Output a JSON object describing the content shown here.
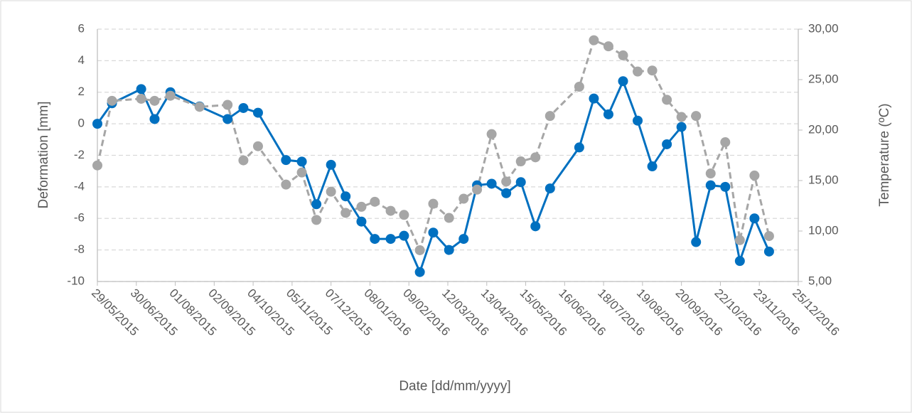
{
  "chart_data": {
    "type": "line",
    "x_label": "Date [dd/mm/yyyy]",
    "y_label": "Deformation [mm]",
    "y2_label": "Temperature (ºC)",
    "x": [
      "2015-05-29",
      "2015-06-10",
      "2015-07-04",
      "2015-07-15",
      "2015-07-28",
      "2015-08-21",
      "2015-09-13",
      "2015-09-26",
      "2015-10-08",
      "2015-10-31",
      "2015-11-13",
      "2015-11-25",
      "2015-12-07",
      "2015-12-19",
      "2016-01-01",
      "2016-01-12",
      "2016-01-25",
      "2016-02-05",
      "2016-02-18",
      "2016-02-29",
      "2016-03-13",
      "2016-03-25",
      "2016-04-05",
      "2016-04-17",
      "2016-04-29",
      "2016-05-11",
      "2016-05-23",
      "2016-06-04",
      "2016-06-28",
      "2016-07-10",
      "2016-07-22",
      "2016-08-03",
      "2016-08-15",
      "2016-08-27",
      "2016-09-08",
      "2016-09-20",
      "2016-10-02",
      "2016-10-14",
      "2016-10-26",
      "2016-11-07",
      "2016-11-19",
      "2016-12-01"
    ],
    "series": [
      {
        "color": "#0070c0",
        "dashed": false,
        "values": [
          0,
          1.3,
          2.2,
          0.3,
          2.0,
          1.1,
          0.3,
          1.0,
          0.7,
          -2.3,
          -2.4,
          -5.1,
          -2.6,
          -4.6,
          -6.2,
          -7.3,
          -7.3,
          -7.1,
          -9.4,
          -6.9,
          -8.0,
          -7.3,
          -3.9,
          -3.8,
          -4.4,
          -3.7,
          -6.5,
          -4.1,
          -1.5,
          1.6,
          0.6,
          2.7,
          0.2,
          -2.7,
          -1.3,
          -0.2,
          -7.5,
          -3.9,
          -4.0,
          -8.7,
          -6.0,
          -8.1
        ]
      },
      {
        "color": "#a6a6a6",
        "dashed": true,
        "axis": "y2",
        "values": [
          16.5,
          22.9,
          23.1,
          22.9,
          23.4,
          22.3,
          22.5,
          17.0,
          18.4,
          14.6,
          15.8,
          11.1,
          13.9,
          11.8,
          12.4,
          12.9,
          12.0,
          11.6,
          8.1,
          12.7,
          11.3,
          13.2,
          14.1,
          19.6,
          14.9,
          16.9,
          17.3,
          21.4,
          24.3,
          28.9,
          28.3,
          27.4,
          25.8,
          25.9,
          23.0,
          21.3,
          21.4,
          15.7,
          18.8,
          9.1,
          15.5,
          9.5
        ]
      }
    ],
    "xlim": [
      "2015-05-29",
      "2016-12-25"
    ],
    "xticks": [
      {
        "value": "2015-05-29",
        "label": "29/05/2015"
      },
      {
        "value": "2015-06-30",
        "label": "30/06/2015"
      },
      {
        "value": "2015-08-01",
        "label": "01/08/2015"
      },
      {
        "value": "2015-09-02",
        "label": "02/09/2015"
      },
      {
        "value": "2015-10-04",
        "label": "04/10/2015"
      },
      {
        "value": "2015-11-05",
        "label": "05/11/2015"
      },
      {
        "value": "2015-12-07",
        "label": "07/12/2015"
      },
      {
        "value": "2016-01-08",
        "label": "08/01/2016"
      },
      {
        "value": "2016-02-09",
        "label": "09/02/2016"
      },
      {
        "value": "2016-03-12",
        "label": "12/03/2016"
      },
      {
        "value": "2016-04-13",
        "label": "13/04/2016"
      },
      {
        "value": "2016-05-15",
        "label": "15/05/2016"
      },
      {
        "value": "2016-06-16",
        "label": "16/06/2016"
      },
      {
        "value": "2016-07-18",
        "label": "18/07/2016"
      },
      {
        "value": "2016-08-19",
        "label": "19/08/2016"
      },
      {
        "value": "2016-09-20",
        "label": "20/09/2016"
      },
      {
        "value": "2016-10-22",
        "label": "22/10/2016"
      },
      {
        "value": "2016-11-23",
        "label": "23/11/2016"
      },
      {
        "value": "2016-12-25",
        "label": "25/12/2016"
      }
    ],
    "ylim": [
      -10,
      6
    ],
    "yticks": [
      -10,
      -8,
      -6,
      -4,
      -2,
      0,
      2,
      4,
      6
    ],
    "y2lim": [
      5,
      30
    ],
    "y2ticks": [
      {
        "value": 5,
        "label": "5,00"
      },
      {
        "value": 10,
        "label": "10,00"
      },
      {
        "value": 15,
        "label": "15,00"
      },
      {
        "value": 20,
        "label": "20,00"
      },
      {
        "value": 25,
        "label": "25,00"
      },
      {
        "value": 30,
        "label": "30,00"
      }
    ],
    "grid": true
  }
}
